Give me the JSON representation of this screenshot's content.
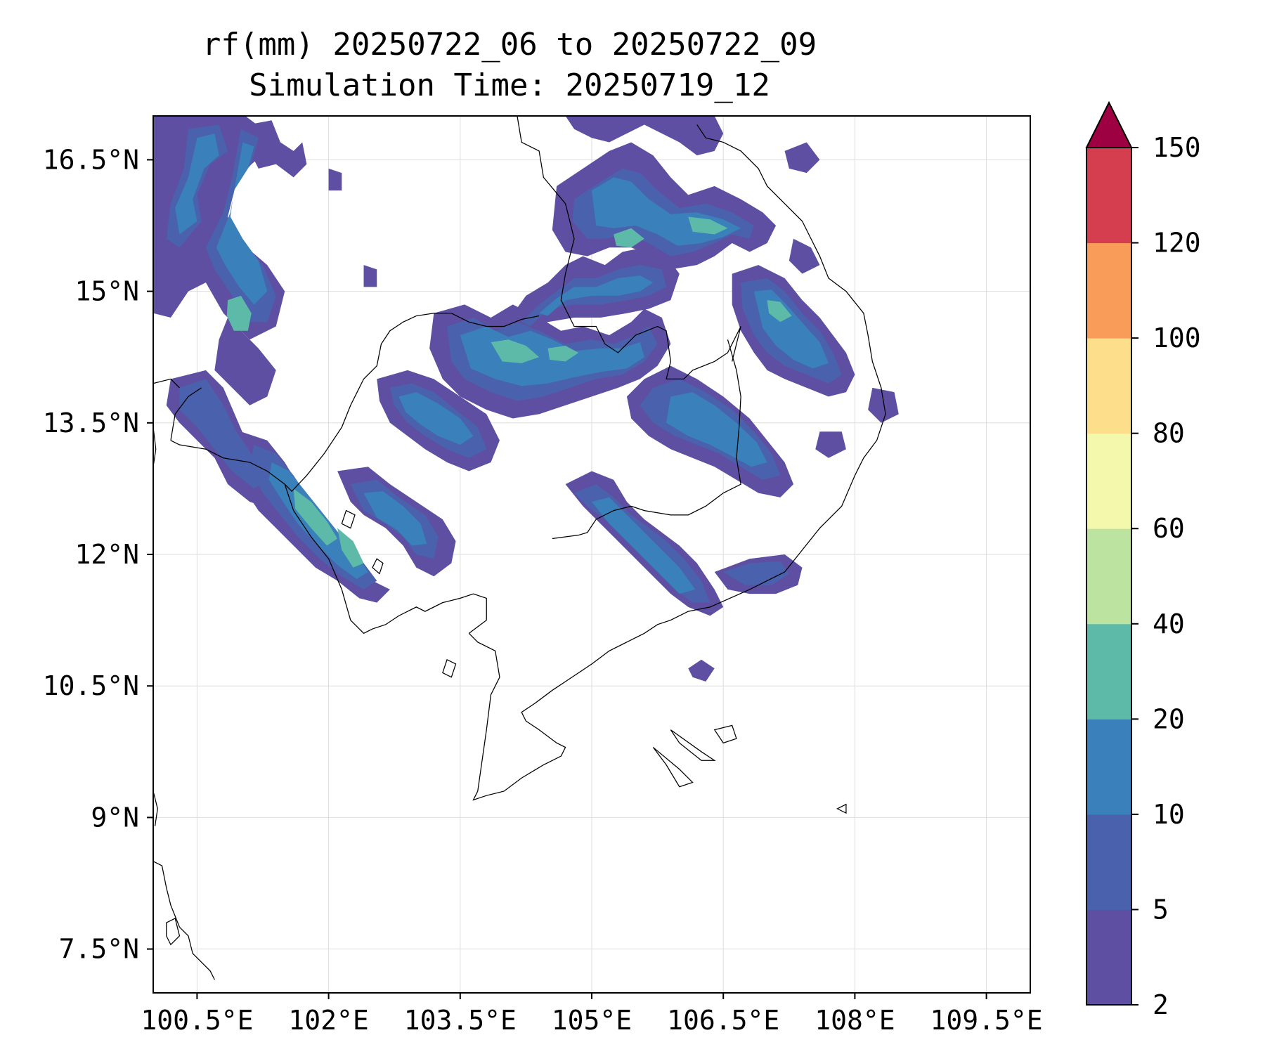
{
  "title": {
    "line1": "rf(mm) 20250722_06 to 20250722_09",
    "line2": "Simulation Time: 20250719_12"
  },
  "map": {
    "lon_range": [
      100.0,
      110.0
    ],
    "lat_range": [
      7.0,
      17.0
    ],
    "x_ticks": [
      "100.5°E",
      "102°E",
      "103.5°E",
      "105°E",
      "106.5°E",
      "108°E",
      "109.5°E"
    ],
    "x_tick_values": [
      100.5,
      102,
      103.5,
      105,
      106.5,
      108,
      109.5
    ],
    "y_ticks": [
      "16.5°N",
      "15°N",
      "13.5°N",
      "12°N",
      "10.5°N",
      "9°N",
      "7.5°N"
    ],
    "y_tick_values": [
      16.5,
      15,
      13.5,
      12,
      10.5,
      9,
      7.5
    ],
    "grid": true,
    "coastline_color": "#000000"
  },
  "colorbar": {
    "levels": [
      "2",
      "5",
      "10",
      "20",
      "40",
      "60",
      "80",
      "100",
      "120",
      "150"
    ],
    "colors": [
      "#5e4fa2",
      "#4a62ad",
      "#3a80ba",
      "#5ebaa8",
      "#bde3a0",
      "#f3f8ad",
      "#fddf8b",
      "#f99c5a",
      "#d53e4f",
      "#9e0142"
    ],
    "extend": "max"
  }
}
